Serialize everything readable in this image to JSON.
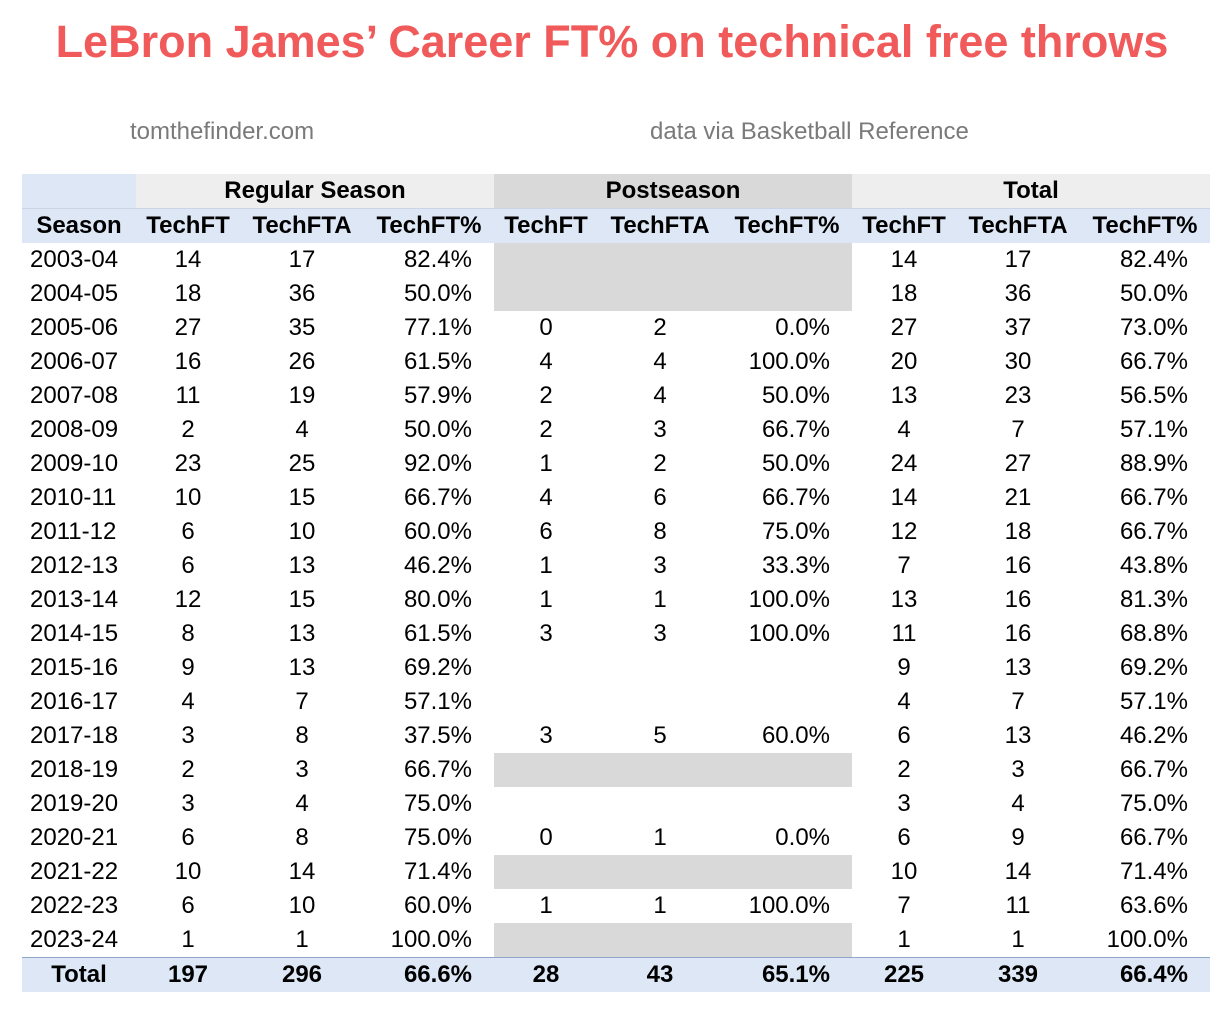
{
  "title": "LeBron James’ Career FT% on technical free throws",
  "credit_left": "tomthefinder.com",
  "credit_right": "data via Basketball Reference",
  "groups": {
    "regular": "Regular Season",
    "post": "Postseason",
    "total": "Total"
  },
  "columns": [
    "Season",
    "TechFT",
    "TechFTA",
    "TechFT%",
    "TechFT",
    "TechFTA",
    "TechFT%",
    "TechFT",
    "TechFTA",
    "TechFT%"
  ],
  "rows": [
    {
      "season": "2003-04",
      "reg": [
        "14",
        "17",
        "82.4%"
      ],
      "post": null,
      "post_fill": true,
      "tot": [
        "14",
        "17",
        "82.4%"
      ]
    },
    {
      "season": "2004-05",
      "reg": [
        "18",
        "36",
        "50.0%"
      ],
      "post": null,
      "post_fill": true,
      "tot": [
        "18",
        "36",
        "50.0%"
      ]
    },
    {
      "season": "2005-06",
      "reg": [
        "27",
        "35",
        "77.1%"
      ],
      "post": [
        "0",
        "2",
        "0.0%"
      ],
      "post_fill": false,
      "tot": [
        "27",
        "37",
        "73.0%"
      ]
    },
    {
      "season": "2006-07",
      "reg": [
        "16",
        "26",
        "61.5%"
      ],
      "post": [
        "4",
        "4",
        "100.0%"
      ],
      "post_fill": false,
      "tot": [
        "20",
        "30",
        "66.7%"
      ]
    },
    {
      "season": "2007-08",
      "reg": [
        "11",
        "19",
        "57.9%"
      ],
      "post": [
        "2",
        "4",
        "50.0%"
      ],
      "post_fill": false,
      "tot": [
        "13",
        "23",
        "56.5%"
      ]
    },
    {
      "season": "2008-09",
      "reg": [
        "2",
        "4",
        "50.0%"
      ],
      "post": [
        "2",
        "3",
        "66.7%"
      ],
      "post_fill": false,
      "tot": [
        "4",
        "7",
        "57.1%"
      ]
    },
    {
      "season": "2009-10",
      "reg": [
        "23",
        "25",
        "92.0%"
      ],
      "post": [
        "1",
        "2",
        "50.0%"
      ],
      "post_fill": false,
      "tot": [
        "24",
        "27",
        "88.9%"
      ]
    },
    {
      "season": "2010-11",
      "reg": [
        "10",
        "15",
        "66.7%"
      ],
      "post": [
        "4",
        "6",
        "66.7%"
      ],
      "post_fill": false,
      "tot": [
        "14",
        "21",
        "66.7%"
      ]
    },
    {
      "season": "2011-12",
      "reg": [
        "6",
        "10",
        "60.0%"
      ],
      "post": [
        "6",
        "8",
        "75.0%"
      ],
      "post_fill": false,
      "tot": [
        "12",
        "18",
        "66.7%"
      ]
    },
    {
      "season": "2012-13",
      "reg": [
        "6",
        "13",
        "46.2%"
      ],
      "post": [
        "1",
        "3",
        "33.3%"
      ],
      "post_fill": false,
      "tot": [
        "7",
        "16",
        "43.8%"
      ]
    },
    {
      "season": "2013-14",
      "reg": [
        "12",
        "15",
        "80.0%"
      ],
      "post": [
        "1",
        "1",
        "100.0%"
      ],
      "post_fill": false,
      "tot": [
        "13",
        "16",
        "81.3%"
      ]
    },
    {
      "season": "2014-15",
      "reg": [
        "8",
        "13",
        "61.5%"
      ],
      "post": [
        "3",
        "3",
        "100.0%"
      ],
      "post_fill": false,
      "tot": [
        "11",
        "16",
        "68.8%"
      ]
    },
    {
      "season": "2015-16",
      "reg": [
        "9",
        "13",
        "69.2%"
      ],
      "post": null,
      "post_fill": false,
      "tot": [
        "9",
        "13",
        "69.2%"
      ]
    },
    {
      "season": "2016-17",
      "reg": [
        "4",
        "7",
        "57.1%"
      ],
      "post": null,
      "post_fill": false,
      "tot": [
        "4",
        "7",
        "57.1%"
      ]
    },
    {
      "season": "2017-18",
      "reg": [
        "3",
        "8",
        "37.5%"
      ],
      "post": [
        "3",
        "5",
        "60.0%"
      ],
      "post_fill": false,
      "tot": [
        "6",
        "13",
        "46.2%"
      ]
    },
    {
      "season": "2018-19",
      "reg": [
        "2",
        "3",
        "66.7%"
      ],
      "post": null,
      "post_fill": true,
      "tot": [
        "2",
        "3",
        "66.7%"
      ]
    },
    {
      "season": "2019-20",
      "reg": [
        "3",
        "4",
        "75.0%"
      ],
      "post": null,
      "post_fill": false,
      "tot": [
        "3",
        "4",
        "75.0%"
      ]
    },
    {
      "season": "2020-21",
      "reg": [
        "6",
        "8",
        "75.0%"
      ],
      "post": [
        "0",
        "1",
        "0.0%"
      ],
      "post_fill": false,
      "tot": [
        "6",
        "9",
        "66.7%"
      ]
    },
    {
      "season": "2021-22",
      "reg": [
        "10",
        "14",
        "71.4%"
      ],
      "post": null,
      "post_fill": true,
      "tot": [
        "10",
        "14",
        "71.4%"
      ]
    },
    {
      "season": "2022-23",
      "reg": [
        "6",
        "10",
        "60.0%"
      ],
      "post": [
        "1",
        "1",
        "100.0%"
      ],
      "post_fill": false,
      "tot": [
        "7",
        "11",
        "63.6%"
      ]
    },
    {
      "season": "2023-24",
      "reg": [
        "1",
        "1",
        "100.0%"
      ],
      "post": null,
      "post_fill": true,
      "tot": [
        "1",
        "1",
        "100.0%"
      ]
    }
  ],
  "total": {
    "label": "Total",
    "reg": [
      "197",
      "296",
      "66.6%"
    ],
    "post": [
      "28",
      "43",
      "65.1%"
    ],
    "tot": [
      "225",
      "339",
      "66.4%"
    ]
  },
  "colors": {
    "title": "#f05a5a",
    "header_blue": "#dde7f5",
    "header_gray": "#d9d9d9",
    "header_lightgray": "#eeeeee"
  }
}
